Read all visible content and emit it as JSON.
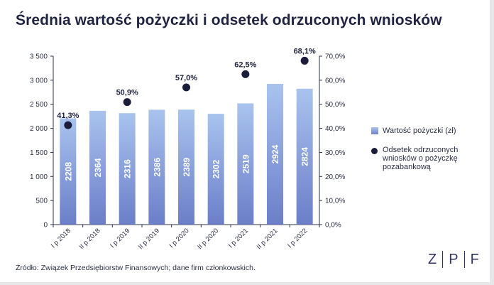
{
  "title": "Średnia wartość pożyczki i odsetek odrzuconych wniosków",
  "source": "Źródło: Związek Przedsiębiorstw Finansowych; dane firm członkowskich.",
  "logo": {
    "letters": [
      "Z",
      "P",
      "F"
    ]
  },
  "legend": {
    "bar_label": "Wartość pożyczki (zł)",
    "dot_label_lines": [
      "Odsetek odrzuconych",
      "wniosków o pożyczkę",
      "pozabankową"
    ]
  },
  "colors": {
    "bar_top": "#a9c3ee",
    "bar_bottom": "#6b7ec8",
    "dot": "#1a1d3a",
    "text": "#1f2340",
    "axis": "#2b2f45"
  },
  "chart_data": {
    "type": "bar",
    "categories": [
      "I p 2018",
      "II p 2018",
      "I p 2019",
      "II p 2019",
      "I p 2020",
      "II p 2020",
      "I p 2021",
      "II p 2021",
      "I p 2022"
    ],
    "series": [
      {
        "name": "Wartość pożyczki (zł)",
        "kind": "bar",
        "axis": "left",
        "values": [
          2208,
          2364,
          2316,
          2386,
          2389,
          2302,
          2519,
          2924,
          2824
        ],
        "labels": [
          "2208",
          "2364",
          "2316",
          "2386",
          "2389",
          "2302",
          "2519",
          "2924",
          "2824"
        ]
      },
      {
        "name": "Odsetek odrzuconych wniosków o pożyczkę pozabankową",
        "kind": "scatter",
        "axis": "right",
        "points": [
          {
            "category": "I p 2018",
            "value": 41.3,
            "label": "41,3%"
          },
          {
            "category": "I p 2019",
            "value": 50.9,
            "label": "50,9%"
          },
          {
            "category": "I p 2020",
            "value": 57.0,
            "label": "57,0%"
          },
          {
            "category": "I p 2021",
            "value": 62.5,
            "label": "62,5%"
          },
          {
            "category": "I p 2022",
            "value": 68.1,
            "label": "68,1%"
          }
        ]
      }
    ],
    "y_left": {
      "min": 0,
      "max": 3500,
      "ticks": [
        0,
        500,
        1000,
        1500,
        2000,
        2500,
        3000,
        3500
      ],
      "tick_labels": [
        "0",
        "500",
        "1 000",
        "1 500",
        "2 000",
        "2 500",
        "3 000",
        "3 500"
      ]
    },
    "y_right": {
      "min": 0,
      "max": 70,
      "ticks": [
        0,
        10,
        20,
        30,
        40,
        50,
        60,
        70
      ],
      "tick_labels": [
        "0,0%",
        "10,0%",
        "20,0%",
        "30,0%",
        "40,0%",
        "50,0%",
        "60,0%",
        "70,0%"
      ]
    },
    "grid": false,
    "legend_position": "right"
  }
}
